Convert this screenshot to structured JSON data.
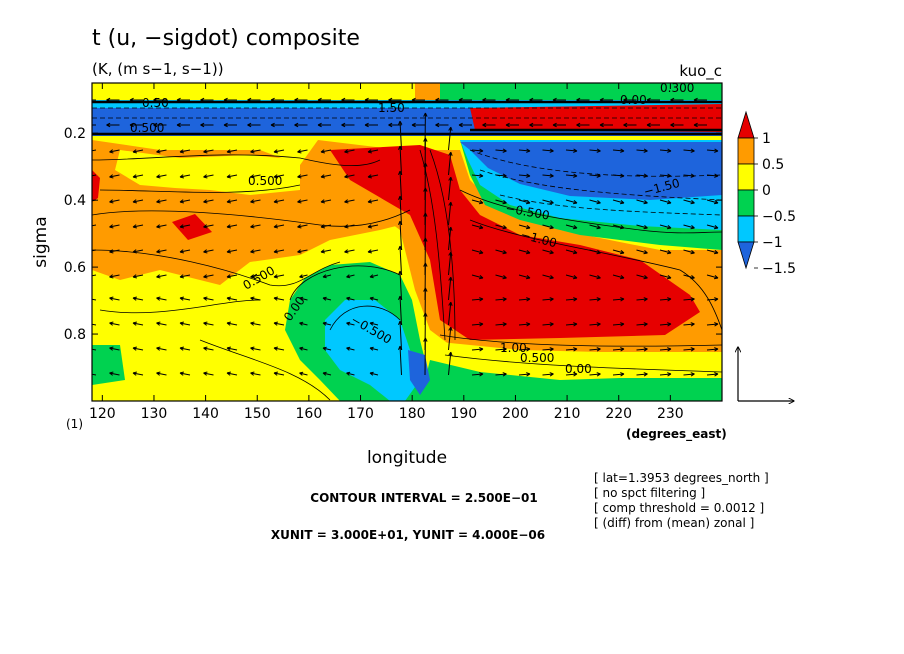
{
  "chart_data": {
    "type": "heatmap",
    "title": "t (u, −sigdot) composite",
    "subtitle": "(K, (m s−1, s−1))",
    "experiment_label": "kuo_c",
    "xlabel": "longitude",
    "xunit_label": "(degrees_east)",
    "ylabel": "sigma",
    "level_marker": "(1)",
    "xlim": [
      118,
      240
    ],
    "ylim": [
      1.0,
      0.05
    ],
    "x_ticks": [
      120,
      130,
      140,
      150,
      160,
      170,
      180,
      190,
      200,
      210,
      220,
      230
    ],
    "x_tick_labels": [
      "120",
      "130",
      "140",
      "150",
      "160",
      "170",
      "180",
      "190",
      "200",
      "210",
      "220",
      "230"
    ],
    "y_ticks": [
      0.2,
      0.4,
      0.6,
      0.8
    ],
    "y_tick_labels": [
      "0.2",
      "0.4",
      "0.6",
      "0.8"
    ],
    "colorbar": {
      "levels": [
        -1.5,
        -1,
        -0.5,
        0,
        0.5,
        1
      ],
      "labels": [
        "−1.5",
        "−1",
        "−0.5",
        "0",
        "0.5",
        "1"
      ],
      "colors": [
        "#1e64dc",
        "#00c8ff",
        "#00d250",
        "#ffff00",
        "#ff9b00",
        "#e60000",
        "#e60000"
      ]
    },
    "anomaly_regions": [
      {
        "value": 1.0,
        "cx": 200,
        "cy": 0.55,
        "desc_note": ""
      },
      {
        "value": -1.5,
        "cx": 210,
        "cy": 0.3
      },
      {
        "value": -1.0,
        "cx": 166,
        "cy": 0.85
      }
    ],
    "contour_labels": [
      "0.500",
      "0.500",
      "0.00",
      "−0.500",
      "0.500",
      "0.00",
      "1.00",
      "1.50",
      "0.50",
      "0.500",
      "0.00",
      "0.300",
      "−1.50",
      "−1.00",
      "−0.500"
    ],
    "contour_interval_text": "CONTOUR INTERVAL = 2.500E−01",
    "unit_text": "XUNIT = 3.000E+01, YUNIT = 4.000E−06",
    "notes": [
      "[ lat=1.3953 degrees_north ]",
      "[ no spct filtering ]",
      "[ comp threshold = 0.0012 ]",
      "[ (diff) from (mean) zonal ]"
    ]
  }
}
